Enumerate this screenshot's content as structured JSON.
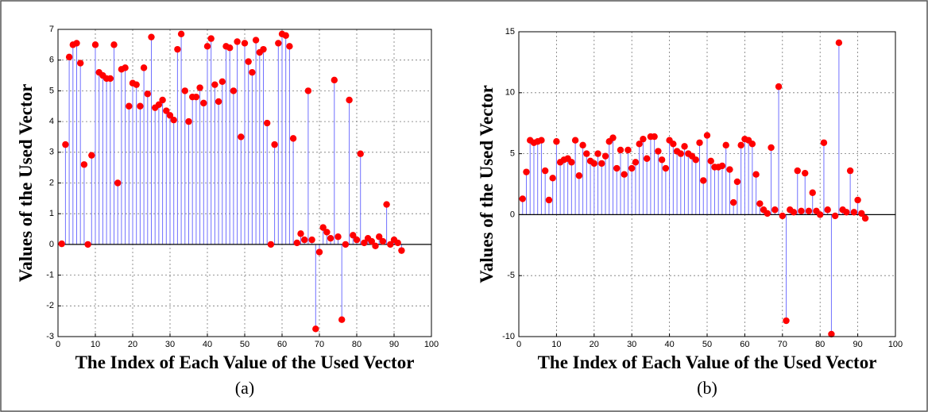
{
  "chart_data": [
    {
      "type": "stem",
      "xlabel": "The Index of Each Value of the Used Vector",
      "ylabel": "Values of the Used Vector",
      "caption": "(a)",
      "color": "#ff0000",
      "stem_color": "#7070ff",
      "grid": true,
      "xlim": [
        0,
        100
      ],
      "xticks": [
        0,
        10,
        20,
        30,
        40,
        50,
        60,
        70,
        80,
        90,
        100
      ],
      "ylim": [
        -3,
        7
      ],
      "yticks": [
        -3,
        -2,
        -1,
        0,
        1,
        2,
        3,
        4,
        5,
        6,
        7
      ],
      "x": [
        1,
        2,
        3,
        4,
        5,
        6,
        7,
        8,
        9,
        10,
        11,
        12,
        13,
        14,
        15,
        16,
        17,
        18,
        19,
        20,
        21,
        22,
        23,
        24,
        25,
        26,
        27,
        28,
        29,
        30,
        31,
        32,
        33,
        34,
        35,
        36,
        37,
        38,
        39,
        40,
        41,
        42,
        43,
        44,
        45,
        46,
        47,
        48,
        49,
        50,
        51,
        52,
        53,
        54,
        55,
        56,
        57,
        58,
        59,
        60,
        61,
        62,
        63,
        64,
        65,
        66,
        67,
        68,
        69,
        70,
        71,
        72,
        73,
        74,
        75,
        76,
        77,
        78,
        79,
        80,
        81,
        82,
        83,
        84,
        85,
        86,
        87,
        88,
        89,
        90,
        91,
        92
      ],
      "values": [
        0.02,
        3.25,
        6.1,
        6.5,
        6.55,
        5.9,
        2.6,
        0,
        2.9,
        6.5,
        5.6,
        5.5,
        5.4,
        5.4,
        6.5,
        2.0,
        5.7,
        5.75,
        4.5,
        5.25,
        5.2,
        4.5,
        5.75,
        4.9,
        6.75,
        4.45,
        4.55,
        4.7,
        4.35,
        4.2,
        4.05,
        6.35,
        6.85,
        5.0,
        4.0,
        4.8,
        4.8,
        5.1,
        4.6,
        6.45,
        6.7,
        5.2,
        4.65,
        5.3,
        6.45,
        6.4,
        5.0,
        6.6,
        3.5,
        6.55,
        5.95,
        5.6,
        6.65,
        6.25,
        6.35,
        3.95,
        0,
        3.25,
        6.55,
        6.85,
        6.8,
        6.45,
        3.45,
        0.05,
        0.35,
        0.15,
        5.0,
        0.15,
        -2.75,
        -0.25,
        0.55,
        0.4,
        0.2,
        5.35,
        0.25,
        -2.45,
        0.0,
        4.7,
        0.3,
        0.15,
        2.95,
        0.05,
        0.2,
        0.1,
        -0.05,
        0.25,
        0.1,
        1.3,
        0.0,
        0.15,
        0.05,
        -0.2
      ]
    },
    {
      "type": "stem",
      "xlabel": "The Index of Each Value of the Used Vector",
      "ylabel": "Values of the Used Vector",
      "caption": "(b)",
      "color": "#ff0000",
      "stem_color": "#7070ff",
      "grid": true,
      "xlim": [
        0,
        100
      ],
      "xticks": [
        0,
        10,
        20,
        30,
        40,
        50,
        60,
        70,
        80,
        90,
        100
      ],
      "ylim": [
        -10,
        15
      ],
      "yticks": [
        -10,
        -5,
        0,
        5,
        10,
        15
      ],
      "x": [
        1,
        2,
        3,
        4,
        5,
        6,
        7,
        8,
        9,
        10,
        11,
        12,
        13,
        14,
        15,
        16,
        17,
        18,
        19,
        20,
        21,
        22,
        23,
        24,
        25,
        26,
        27,
        28,
        29,
        30,
        31,
        32,
        33,
        34,
        35,
        36,
        37,
        38,
        39,
        40,
        41,
        42,
        43,
        44,
        45,
        46,
        47,
        48,
        49,
        50,
        51,
        52,
        53,
        54,
        55,
        56,
        57,
        58,
        59,
        60,
        61,
        62,
        63,
        64,
        65,
        66,
        67,
        68,
        69,
        70,
        71,
        72,
        73,
        74,
        75,
        76,
        77,
        78,
        79,
        80,
        81,
        82,
        83,
        84,
        85,
        86,
        87,
        88,
        89,
        90,
        91,
        92
      ],
      "values": [
        1.3,
        3.5,
        6.1,
        5.9,
        6.0,
        6.1,
        3.6,
        1.2,
        3.0,
        6.0,
        4.3,
        4.5,
        4.6,
        4.3,
        6.1,
        3.2,
        5.7,
        5.0,
        4.4,
        4.2,
        5.0,
        4.2,
        4.8,
        6.0,
        6.3,
        3.8,
        5.3,
        3.3,
        5.3,
        3.8,
        4.3,
        5.8,
        6.2,
        4.6,
        6.4,
        6.4,
        5.2,
        4.5,
        3.8,
        6.1,
        5.8,
        5.2,
        5.0,
        5.6,
        5.0,
        4.8,
        4.5,
        5.9,
        2.8,
        6.5,
        4.4,
        3.9,
        3.9,
        4.0,
        5.7,
        3.7,
        1.0,
        2.7,
        5.7,
        6.2,
        6.1,
        5.8,
        3.3,
        0.9,
        0.4,
        0.1,
        5.5,
        0.4,
        10.5,
        -0.1,
        -8.7,
        0.4,
        0.2,
        3.6,
        0.3,
        3.4,
        0.3,
        1.8,
        0.3,
        0.0,
        5.9,
        0.4,
        -9.8,
        -0.1,
        14.1,
        0.4,
        0.2,
        3.6,
        0.2,
        1.2,
        0.1,
        -0.3
      ]
    }
  ]
}
